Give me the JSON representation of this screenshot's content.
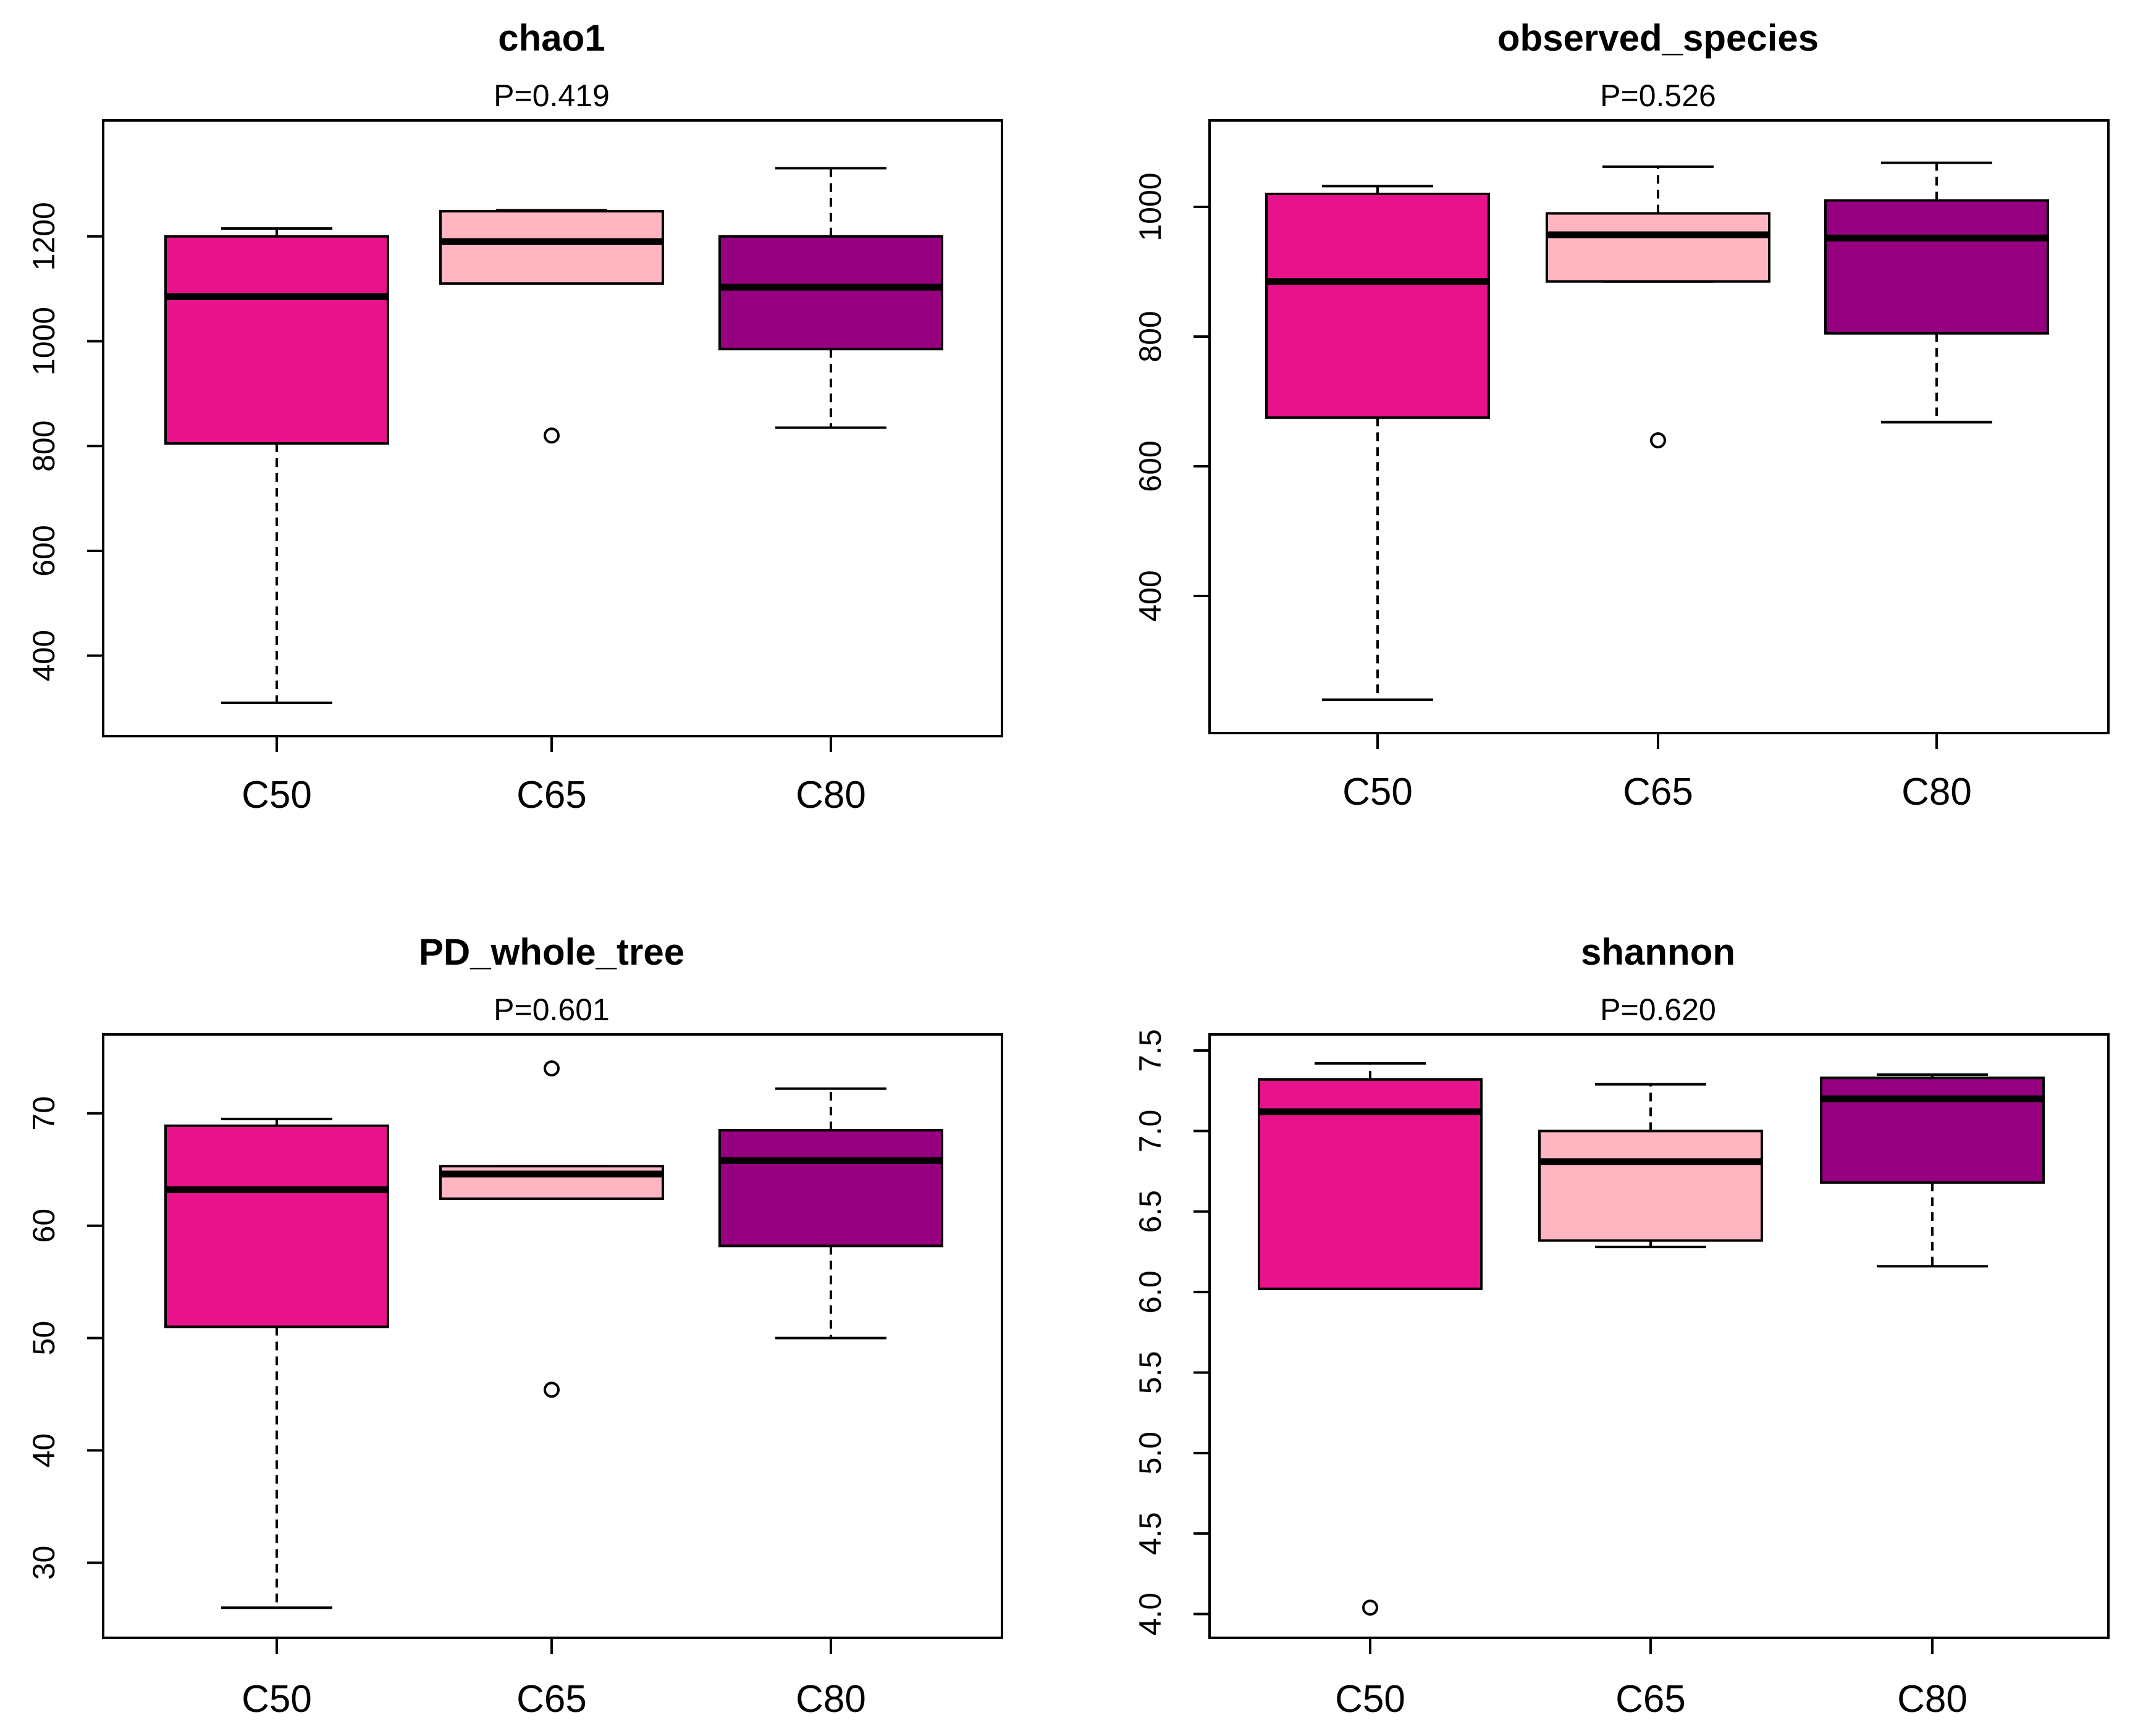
{
  "chart_data": [
    {
      "type": "boxplot",
      "title": "chao1",
      "subtitle": "P=0.419",
      "categories": [
        "C50",
        "C65",
        "C80"
      ],
      "colors": [
        "#e8138a",
        "#ffb6c1",
        "#960080"
      ],
      "ylim": [
        270,
        1380
      ],
      "yticks": [
        400,
        600,
        800,
        1000,
        1200
      ],
      "ytick_labels": [
        "400",
        "600",
        "800",
        "1000",
        "1200"
      ],
      "boxes": [
        {
          "min": 310,
          "q1": 805,
          "median": 1085,
          "q3": 1200,
          "max": 1215,
          "outliers": []
        },
        {
          "min": 1110,
          "q1": 1110,
          "median": 1190,
          "q3": 1248,
          "max": 1250,
          "outliers": [
            820
          ]
        },
        {
          "min": 835,
          "q1": 985,
          "median": 1103,
          "q3": 1200,
          "max": 1330,
          "outliers": []
        }
      ]
    },
    {
      "type": "boxplot",
      "title": "observed_species",
      "subtitle": "P=0.526",
      "categories": [
        "C50",
        "C65",
        "C80"
      ],
      "colors": [
        "#e8138a",
        "#ffb6c1",
        "#960080"
      ],
      "ylim": [
        200,
        1100
      ],
      "yticks": [
        400,
        600,
        800,
        1000
      ],
      "ytick_labels": [
        "400",
        "600",
        "800",
        "1000"
      ],
      "boxes": [
        {
          "min": 240,
          "q1": 675,
          "median": 885,
          "q3": 1020,
          "max": 1032,
          "outliers": []
        },
        {
          "min": 885,
          "q1": 885,
          "median": 957,
          "q3": 990,
          "max": 1062,
          "outliers": [
            640
          ]
        },
        {
          "min": 668,
          "q1": 805,
          "median": 952,
          "q3": 1010,
          "max": 1068,
          "outliers": []
        }
      ]
    },
    {
      "type": "boxplot",
      "title": "PD_whole_tree",
      "subtitle": "P=0.601",
      "categories": [
        "C50",
        "C65",
        "C80"
      ],
      "colors": [
        "#e8138a",
        "#ffb6c1",
        "#960080"
      ],
      "ylim": [
        24.2,
        76.2
      ],
      "yticks": [
        30,
        40,
        50,
        60,
        70
      ],
      "ytick_labels": [
        "30",
        "40",
        "50",
        "60",
        "70"
      ],
      "boxes": [
        {
          "min": 26,
          "q1": 51,
          "median": 63.2,
          "q3": 68.9,
          "max": 69.5,
          "outliers": []
        },
        {
          "min": 62.4,
          "q1": 62.4,
          "median": 64.6,
          "q3": 65.3,
          "max": 65.3,
          "outliers": [
            45.4,
            74
          ]
        },
        {
          "min": 50,
          "q1": 58.2,
          "median": 65.8,
          "q3": 68.5,
          "max": 72.2,
          "outliers": []
        }
      ]
    },
    {
      "type": "boxplot",
      "title": "shannon",
      "subtitle": "P=0.620",
      "categories": [
        "C50",
        "C65",
        "C80"
      ],
      "colors": [
        "#e8138a",
        "#ffb6c1",
        "#960080"
      ],
      "ylim": [
        3.91,
        7.55
      ],
      "yticks": [
        4.0,
        4.5,
        5.0,
        5.5,
        6.0,
        6.5,
        7.0,
        7.5
      ],
      "ytick_labels": [
        "4.0",
        "4.5",
        "5.0",
        "5.5",
        "6.0",
        "6.5",
        "7.0",
        "7.5"
      ],
      "boxes": [
        {
          "min": 6.02,
          "q1": 6.02,
          "median": 7.12,
          "q3": 7.32,
          "max": 7.42,
          "outliers": [
            4.04
          ]
        },
        {
          "min": 6.28,
          "q1": 6.32,
          "median": 6.81,
          "q3": 7.0,
          "max": 7.29,
          "outliers": []
        },
        {
          "min": 6.16,
          "q1": 6.68,
          "median": 7.2,
          "q3": 7.33,
          "max": 7.35,
          "outliers": []
        }
      ]
    }
  ]
}
